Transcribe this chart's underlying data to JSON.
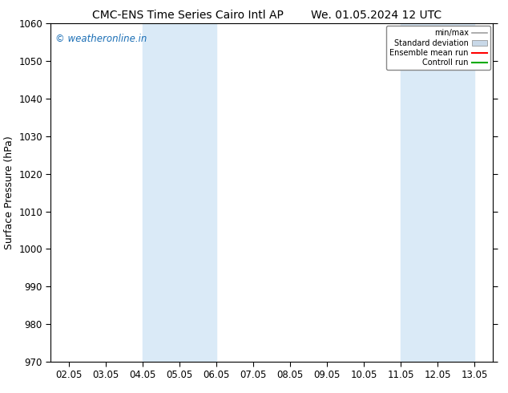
{
  "title_left": "CMC-ENS Time Series Cairo Intl AP",
  "title_right": "We. 01.05.2024 12 UTC",
  "ylabel": "Surface Pressure (hPa)",
  "ylim": [
    970,
    1060
  ],
  "yticks": [
    970,
    980,
    990,
    1000,
    1010,
    1020,
    1030,
    1040,
    1050,
    1060
  ],
  "xlabels": [
    "02.05",
    "03.05",
    "04.05",
    "05.05",
    "06.05",
    "07.05",
    "08.05",
    "09.05",
    "10.05",
    "11.05",
    "12.05",
    "13.05"
  ],
  "x_values": [
    0,
    1,
    2,
    3,
    4,
    5,
    6,
    7,
    8,
    9,
    10,
    11
  ],
  "shaded_bands": [
    {
      "xmin": 2.0,
      "xmax": 4.0,
      "color": "#daeaf7"
    },
    {
      "xmin": 9.0,
      "xmax": 11.0,
      "color": "#daeaf7"
    }
  ],
  "watermark": "© weatheronline.in",
  "watermark_color": "#1a6eb5",
  "background_color": "#ffffff",
  "legend_entries": [
    {
      "label": "min/max",
      "color": "#a0a0a0",
      "lw": 1.2,
      "type": "line"
    },
    {
      "label": "Standard deviation",
      "color": "#c8d8e8",
      "lw": 8,
      "type": "patch"
    },
    {
      "label": "Ensemble mean run",
      "color": "#ff0000",
      "lw": 1.5,
      "type": "line"
    },
    {
      "label": "Controll run",
      "color": "#00aa00",
      "lw": 1.5,
      "type": "line"
    }
  ],
  "title_fontsize": 10,
  "axis_fontsize": 9,
  "tick_fontsize": 8.5
}
